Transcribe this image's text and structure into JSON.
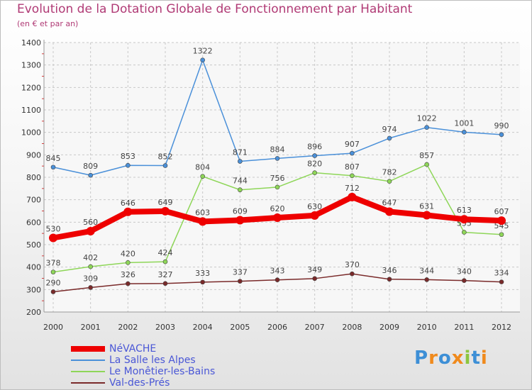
{
  "title": "Evolution de la Dotation Globale de Fonctionnement par Habitant",
  "subtitle": "(en € et par an)",
  "logo": {
    "text": "Proxiti"
  },
  "chart_data": {
    "type": "line",
    "x": [
      "2000",
      "2001",
      "2002",
      "2003",
      "2004",
      "2005",
      "2006",
      "2007",
      "2008",
      "2009",
      "2010",
      "2011",
      "2012"
    ],
    "ylim": [
      200,
      1400
    ],
    "yticks": [
      200,
      300,
      400,
      500,
      600,
      700,
      800,
      900,
      1000,
      1100,
      1200,
      1300,
      1400
    ],
    "grid": true,
    "legend_position": "bottom-left",
    "series": [
      {
        "name": "La Salle les Alpes",
        "color": "#4a90d9",
        "values": [
          845,
          809,
          853,
          852,
          1322,
          871,
          884,
          896,
          907,
          974,
          1022,
          1001,
          990
        ]
      },
      {
        "name": "Le Monêtier-les-Bains",
        "color": "#8ed658",
        "values": [
          378,
          402,
          420,
          424,
          804,
          744,
          756,
          820,
          807,
          782,
          857,
          555,
          545
        ]
      },
      {
        "name": "Val-des-Prés",
        "color": "#7a2a2a",
        "values": [
          290,
          309,
          326,
          327,
          333,
          337,
          343,
          349,
          370,
          346,
          344,
          340,
          334
        ]
      },
      {
        "name": "NéVACHE",
        "color": "#ee0000",
        "values": [
          530,
          560,
          646,
          649,
          603,
          609,
          620,
          630,
          712,
          647,
          631,
          613,
          607
        ]
      }
    ]
  }
}
